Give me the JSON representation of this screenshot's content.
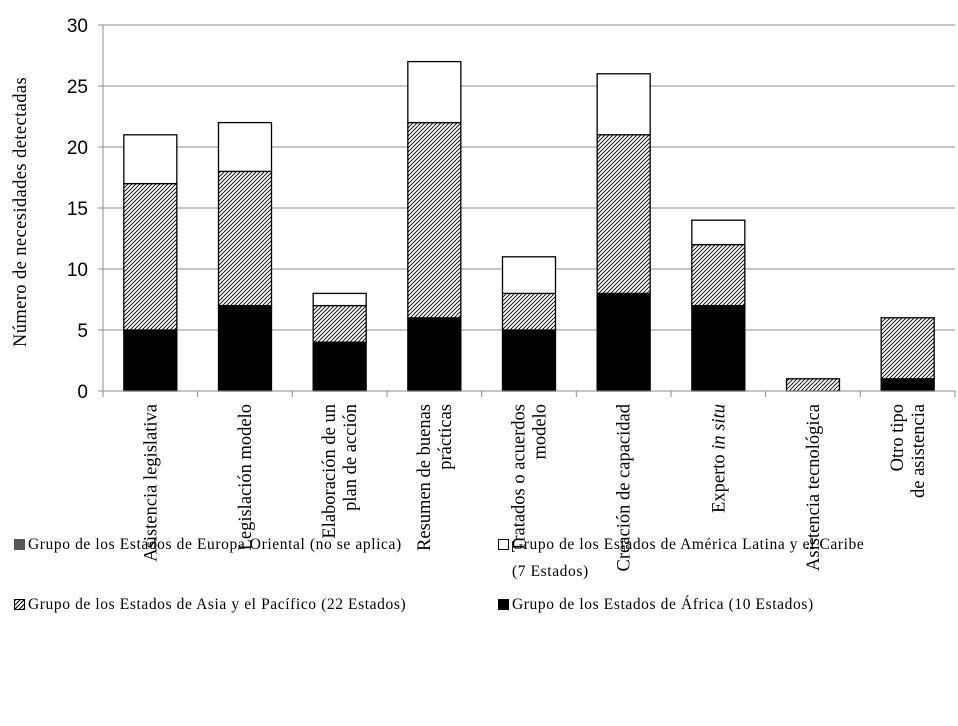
{
  "chart_data": {
    "type": "bar",
    "stacked": true,
    "categories": [
      "Asistencia legislativa",
      "Legislación modelo",
      "Elaboración de un plan de acción",
      "Resumen de buenas prácticas",
      "Tratados o acuerdos modelo",
      "Creación de capacidad",
      "Experto in situ",
      "Asistencia tecnológica",
      "Otro tipo de asistencia"
    ],
    "category_lines": [
      [
        "Asistencia legislativa"
      ],
      [
        "Legislación modelo"
      ],
      [
        "Elaboración de un",
        "plan de acción"
      ],
      [
        "Resumen de buenas",
        "prácticas"
      ],
      [
        "Tratados o acuerdos",
        "modelo"
      ],
      [
        "Creación de capacidad"
      ],
      [
        "Experto in situ"
      ],
      [
        "Asistencia tecnológica"
      ],
      [
        "Otro tipo",
        "de asistencia"
      ]
    ],
    "series": [
      {
        "name": "Grupo de los Estados de África (10 Estados)",
        "values": [
          5,
          7,
          4,
          6,
          5,
          8,
          7,
          0,
          1
        ],
        "pattern": "solid-black"
      },
      {
        "name": "Grupo de los Estados de Asia y el Pacífico (22 Estados)",
        "values": [
          12,
          11,
          3,
          16,
          3,
          13,
          5,
          1,
          5
        ],
        "pattern": "hatched"
      },
      {
        "name": "Grupo de los Estados de América Latina y el Caribe (7 Estados)",
        "values": [
          4,
          4,
          1,
          5,
          3,
          5,
          2,
          0,
          0
        ],
        "pattern": "white"
      },
      {
        "name": "Grupo de los Estados de Europa Oriental (no se aplica)",
        "values": [
          0,
          0,
          0,
          0,
          0,
          0,
          0,
          0,
          0
        ],
        "pattern": "dark-grey"
      }
    ],
    "ylabel": "Número de necesidades detectadas",
    "xlabel": "",
    "ylim": [
      0,
      30
    ],
    "yticks": [
      0,
      5,
      10,
      15,
      20,
      25,
      30
    ],
    "grid": true,
    "legend_position": "bottom",
    "colors": {
      "black": "#000000",
      "dark": "#555555",
      "white": "#ffffff",
      "grid": "#8c8c8c"
    }
  },
  "legend": {
    "europa": "Grupo de los Estados de Europa Oriental (no se aplica)",
    "america_line1": "Grupo de los Estados de América Latina y el Caribe",
    "america_line2": "(7 Estados)",
    "asia": "Grupo de los Estados de Asia y el Pacífico (22 Estados)",
    "africa": "Grupo de los Estados de África (10 Estados)"
  }
}
